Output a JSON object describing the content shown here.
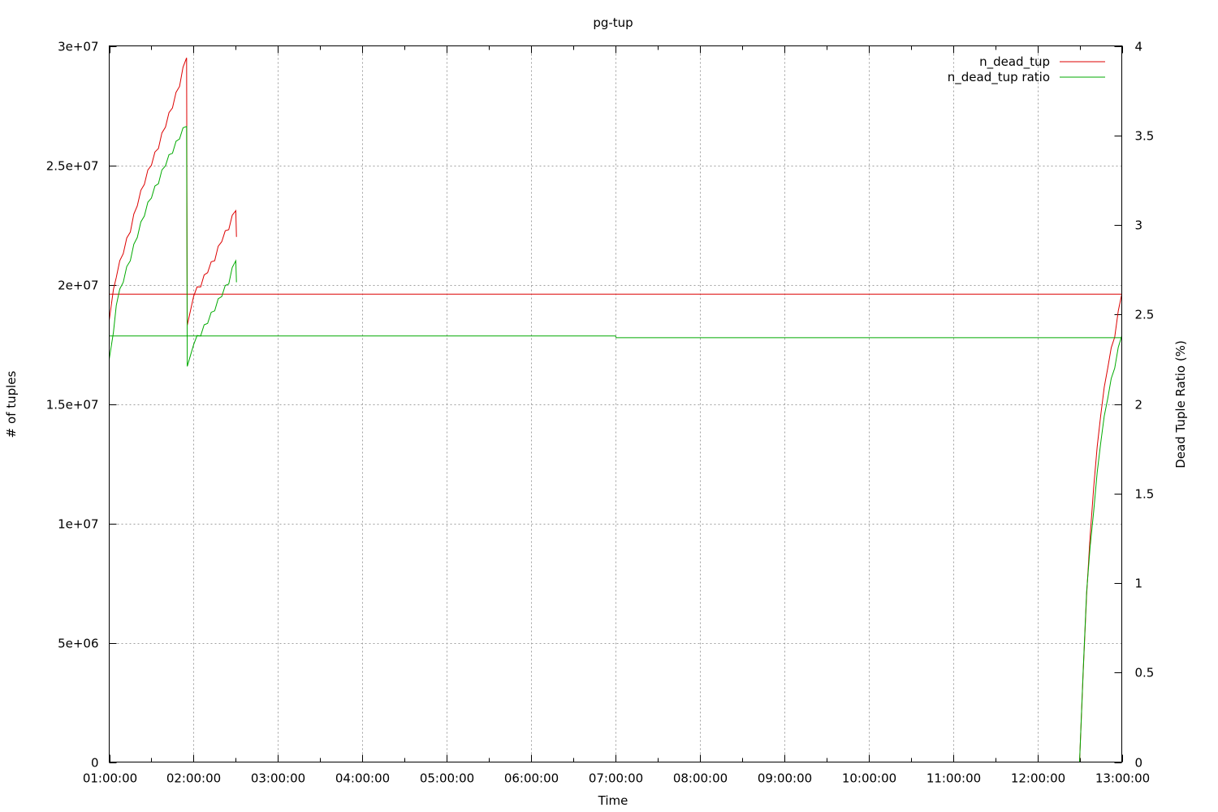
{
  "chart_data": {
    "type": "line",
    "title": "pg-tup",
    "xlabel": "Time",
    "ylabel": "# of tuples",
    "y2label": "Dead Tuple Ratio (%)",
    "xlim": [
      "01:00:00",
      "13:00:00"
    ],
    "ylim": [
      0,
      30000000
    ],
    "y2lim": [
      0,
      4
    ],
    "grid": true,
    "legend_position": "top-right",
    "x_ticks": [
      "01:00:00",
      "02:00:00",
      "03:00:00",
      "04:00:00",
      "05:00:00",
      "06:00:00",
      "07:00:00",
      "08:00:00",
      "09:00:00",
      "10:00:00",
      "11:00:00",
      "12:00:00",
      "13:00:00"
    ],
    "y_ticks": [
      {
        "value": 0,
        "label": "0"
      },
      {
        "value": 5000000,
        "label": "5e+06"
      },
      {
        "value": 10000000,
        "label": "1e+07"
      },
      {
        "value": 15000000,
        "label": "1.5e+07"
      },
      {
        "value": 20000000,
        "label": "2e+07"
      },
      {
        "value": 25000000,
        "label": "2.5e+07"
      },
      {
        "value": 30000000,
        "label": "3e+07"
      }
    ],
    "y2_ticks": [
      {
        "value": 0,
        "label": "0"
      },
      {
        "value": 0.5,
        "label": "0.5"
      },
      {
        "value": 1,
        "label": "1"
      },
      {
        "value": 1.5,
        "label": "1.5"
      },
      {
        "value": 2,
        "label": "2"
      },
      {
        "value": 2.5,
        "label": "2.5"
      },
      {
        "value": 3,
        "label": "3"
      },
      {
        "value": 3.5,
        "label": "3.5"
      },
      {
        "value": 4,
        "label": "4"
      }
    ],
    "series": [
      {
        "name": "n_dead_tup",
        "axis": "y",
        "color": "#dd0000",
        "points": [
          [
            "01:00:00",
            18500000
          ],
          [
            "01:03:00",
            19800000
          ],
          [
            "01:05:00",
            20300000
          ],
          [
            "01:10:00",
            21300000
          ],
          [
            "01:15:00",
            22200000
          ],
          [
            "01:20:00",
            23300000
          ],
          [
            "01:25:00",
            24200000
          ],
          [
            "01:30:00",
            25000000
          ],
          [
            "01:35:00",
            25700000
          ],
          [
            "01:40:00",
            26600000
          ],
          [
            "01:45:00",
            27400000
          ],
          [
            "01:50:00",
            28300000
          ],
          [
            "01:55:00",
            29500000
          ],
          [
            "01:55:30",
            18300000
          ],
          [
            "02:00:00",
            19500000
          ],
          [
            "02:05:00",
            19900000
          ],
          [
            "02:10:00",
            20500000
          ],
          [
            "02:15:00",
            21000000
          ],
          [
            "02:20:00",
            21800000
          ],
          [
            "02:25:00",
            22300000
          ],
          [
            "02:30:00",
            23100000
          ],
          [
            "02:30:30",
            22000000
          ],
          [
            "01:00:00",
            19600000
          ],
          [
            "13:00:00",
            19600000
          ],
          [
            "12:30:00",
            0
          ],
          [
            "12:35:00",
            7000000
          ],
          [
            "12:40:00",
            11500000
          ],
          [
            "12:45:00",
            14500000
          ],
          [
            "12:50:00",
            16500000
          ],
          [
            "12:55:00",
            17800000
          ],
          [
            "13:00:00",
            19600000
          ]
        ]
      },
      {
        "name": "n_dead_tup ratio",
        "axis": "y2",
        "color": "#00aa00",
        "points": [
          [
            "01:00:00",
            2.25
          ],
          [
            "01:03:00",
            2.4
          ],
          [
            "01:05:00",
            2.55
          ],
          [
            "01:10:00",
            2.68
          ],
          [
            "01:15:00",
            2.8
          ],
          [
            "01:20:00",
            2.93
          ],
          [
            "01:25:00",
            3.05
          ],
          [
            "01:30:00",
            3.15
          ],
          [
            "01:35:00",
            3.23
          ],
          [
            "01:40:00",
            3.33
          ],
          [
            "01:45:00",
            3.4
          ],
          [
            "01:50:00",
            3.48
          ],
          [
            "01:55:00",
            3.55
          ],
          [
            "01:55:30",
            2.21
          ],
          [
            "02:00:00",
            2.33
          ],
          [
            "02:05:00",
            2.38
          ],
          [
            "02:10:00",
            2.45
          ],
          [
            "02:15:00",
            2.52
          ],
          [
            "02:20:00",
            2.6
          ],
          [
            "02:25:00",
            2.67
          ],
          [
            "02:30:00",
            2.8
          ],
          [
            "02:30:30",
            2.68
          ],
          [
            "01:00:00",
            2.38
          ],
          [
            "07:00:00",
            2.38
          ],
          [
            "07:00:30",
            2.37
          ],
          [
            "13:00:00",
            2.37
          ],
          [
            "12:30:00",
            0
          ],
          [
            "12:35:00",
            0.95
          ],
          [
            "12:40:00",
            1.4
          ],
          [
            "12:45:00",
            1.78
          ],
          [
            "12:50:00",
            2.03
          ],
          [
            "12:55:00",
            2.2
          ],
          [
            "13:00:00",
            2.38
          ]
        ]
      }
    ]
  }
}
